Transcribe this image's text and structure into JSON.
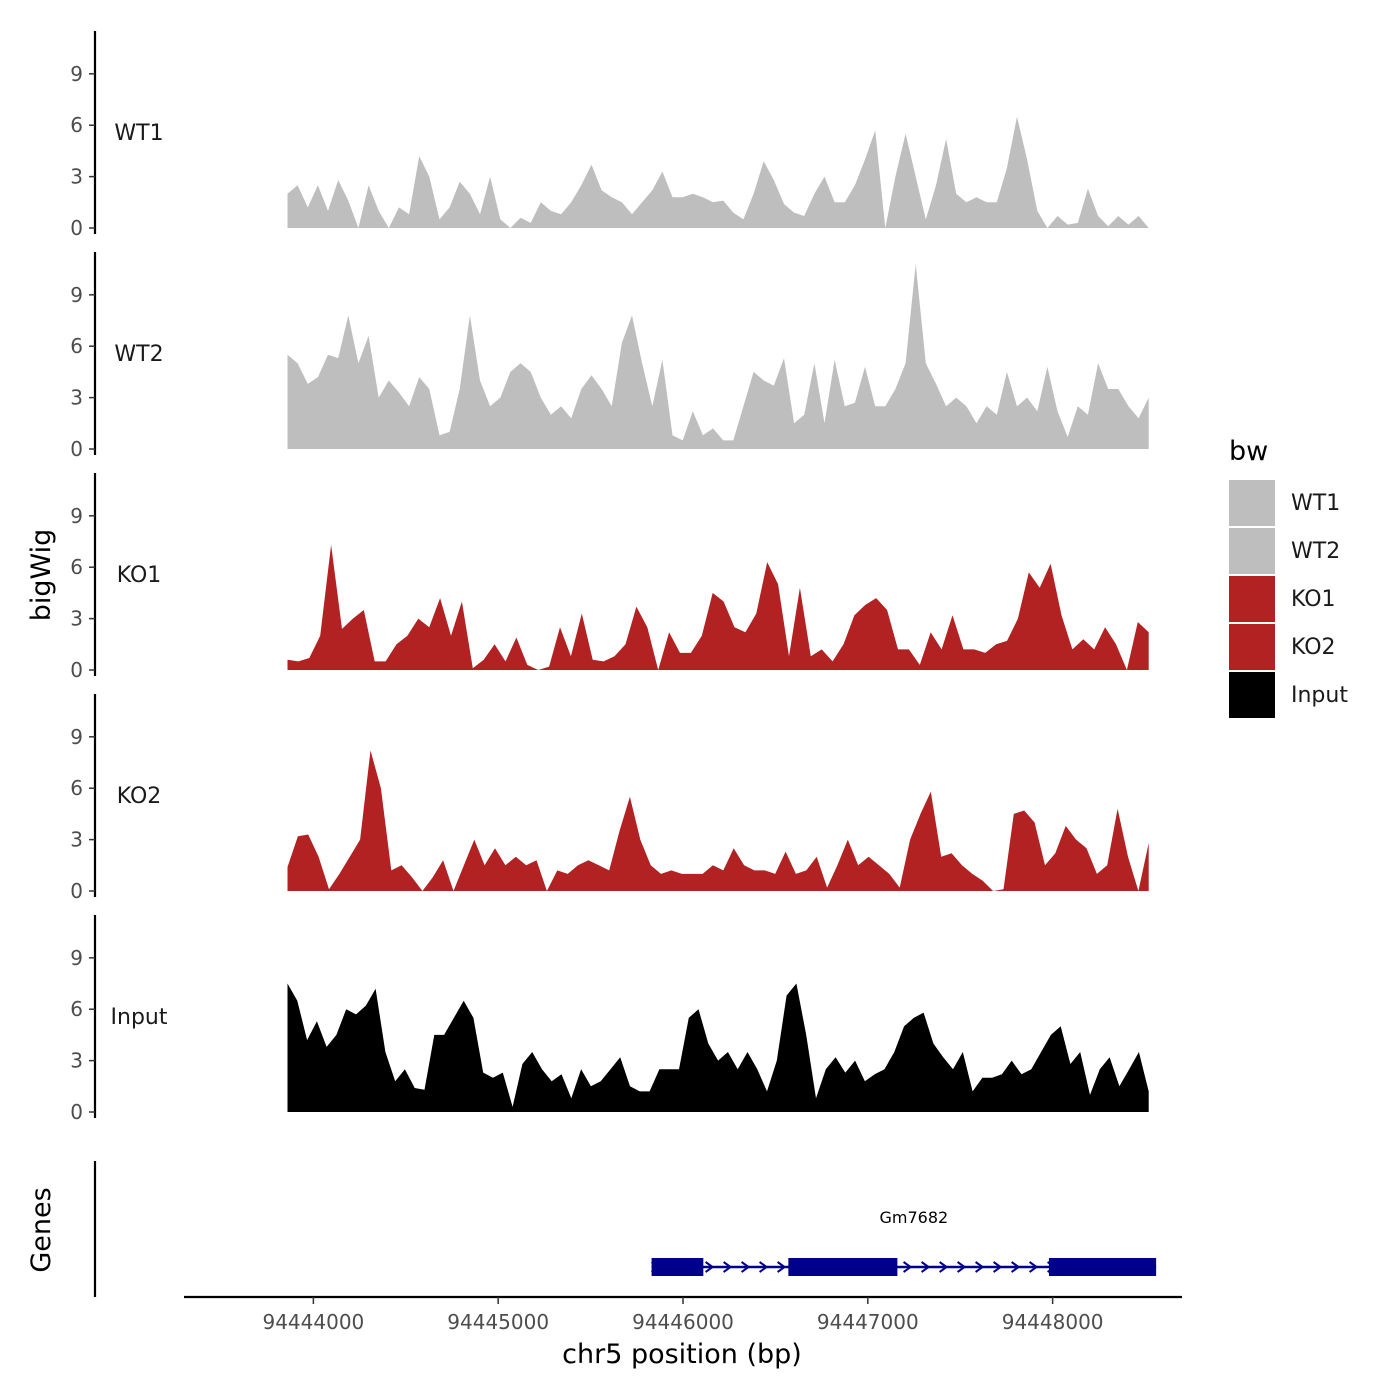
{
  "chart_data": {
    "type": "area",
    "title": "",
    "xlabel": "chr5 position (bp)",
    "ylabel": "bigWig",
    "gene_panel_label": "Genes",
    "legend_title": "bw",
    "legend_position": "right",
    "xlim": [
      94443300,
      94448700
    ],
    "x_ticks": [
      94444000,
      94445000,
      94446000,
      94447000,
      94448000
    ],
    "x_tick_labels": [
      "94444000",
      "94445000",
      "94446000",
      "94447000",
      "94448000"
    ],
    "ylim": [
      0,
      11.5
    ],
    "y_ticks": [
      0,
      3,
      6,
      9
    ],
    "y_tick_labels": [
      "0",
      "3",
      "6",
      "9"
    ],
    "grid": false,
    "track_x_start": 94443860,
    "track_x_end": 94448520,
    "series": [
      {
        "name": "WT1",
        "color": "#BEBEBE",
        "values": [
          2.0,
          2.5,
          1.2,
          2.5,
          1.0,
          2.8,
          1.6,
          0,
          2.5,
          1.0,
          0,
          1.2,
          0.8,
          4.2,
          3.0,
          0.5,
          1.2,
          2.7,
          2.0,
          0.8,
          3.0,
          0.5,
          0,
          0.6,
          0.3,
          1.5,
          1.0,
          0.8,
          1.5,
          2.5,
          3.7,
          2.2,
          1.8,
          1.5,
          0.8,
          1.5,
          2.2,
          3.3,
          1.8,
          1.8,
          2.0,
          1.8,
          1.5,
          1.6,
          0.9,
          0.5,
          2.0,
          3.9,
          2.8,
          1.4,
          0.9,
          0.7,
          2.0,
          3.0,
          1.5,
          1.5,
          2.5,
          4.0,
          5.7,
          0,
          3.0,
          5.5,
          3.0,
          0.5,
          2.5,
          5.2,
          2.0,
          1.5,
          1.8,
          1.5,
          1.5,
          3.5,
          6.5,
          4.0,
          1.0,
          0,
          0.7,
          0.2,
          0.3,
          2.3,
          0.7,
          0.1,
          0.7,
          0.2,
          0.7,
          0
        ]
      },
      {
        "name": "WT2",
        "color": "#BEBEBE",
        "values": [
          5.5,
          5.0,
          3.8,
          4.2,
          5.5,
          5.3,
          7.8,
          5.0,
          6.6,
          3.0,
          4.0,
          3.3,
          2.5,
          4.2,
          3.5,
          0.8,
          1.0,
          3.5,
          7.8,
          4.0,
          2.5,
          3.0,
          4.5,
          5.0,
          4.5,
          3.0,
          2.0,
          2.5,
          1.8,
          3.5,
          4.3,
          3.5,
          2.5,
          6.2,
          7.8,
          5.0,
          2.5,
          5.2,
          0.8,
          0.5,
          2.2,
          0.8,
          1.2,
          0.5,
          0.5,
          2.5,
          4.5,
          4.0,
          3.7,
          5.3,
          1.5,
          2.0,
          5.0,
          1.5,
          5.2,
          2.5,
          2.7,
          4.8,
          2.5,
          2.5,
          3.5,
          5.0,
          10.8,
          5.0,
          3.8,
          2.5,
          3.0,
          2.5,
          1.5,
          2.5,
          2.0,
          4.5,
          2.5,
          3.0,
          2.2,
          4.8,
          2.2,
          0.7,
          2.5,
          2.0,
          5.0,
          3.5,
          3.5,
          2.5,
          1.8,
          3.0
        ]
      },
      {
        "name": "KO1",
        "color": "#B22222",
        "values": [
          0.6,
          0.5,
          0.7,
          2.0,
          7.3,
          2.4,
          3.0,
          3.5,
          0.5,
          0.5,
          1.5,
          2.0,
          3.0,
          2.5,
          4.2,
          2.0,
          4.0,
          0.1,
          0.6,
          1.5,
          0.5,
          1.9,
          0.3,
          0,
          0.2,
          2.5,
          0.8,
          3.3,
          0.6,
          0.5,
          0.8,
          1.5,
          3.7,
          2.5,
          0,
          2.2,
          1.0,
          1.0,
          2.0,
          4.5,
          4.0,
          2.5,
          2.2,
          3.3,
          6.3,
          5.0,
          0.8,
          4.8,
          0.8,
          1.2,
          0.5,
          1.5,
          3.2,
          3.8,
          4.2,
          3.5,
          1.2,
          1.2,
          0.3,
          2.2,
          1.2,
          3.2,
          1.2,
          1.2,
          1.0,
          1.5,
          1.7,
          3.0,
          5.7,
          4.8,
          6.2,
          3.2,
          1.2,
          1.8,
          1.2,
          2.5,
          1.5,
          0,
          2.8,
          2.2
        ]
      },
      {
        "name": "KO2",
        "color": "#B22222",
        "values": [
          1.4,
          3.2,
          3.3,
          2.0,
          0.1,
          1.0,
          2.0,
          3.0,
          8.2,
          6.0,
          1.2,
          1.5,
          0.8,
          0,
          0.8,
          1.8,
          0,
          1.5,
          3.0,
          1.5,
          2.5,
          1.5,
          2.0,
          1.5,
          1.8,
          0,
          1.2,
          1.0,
          1.5,
          1.8,
          1.5,
          1.2,
          3.5,
          5.5,
          3.0,
          1.5,
          1.0,
          1.2,
          1.0,
          1.0,
          1.0,
          1.5,
          1.2,
          2.5,
          1.5,
          1.2,
          1.2,
          1.0,
          2.3,
          1.0,
          1.2,
          2.0,
          0.2,
          1.5,
          3.0,
          1.5,
          2.0,
          1.5,
          1.0,
          0.2,
          3.0,
          4.5,
          5.8,
          2.0,
          2.2,
          1.5,
          1.0,
          0.6,
          0,
          0.1,
          4.5,
          4.7,
          4.0,
          1.5,
          2.2,
          3.8,
          3.0,
          2.5,
          1.0,
          1.5,
          4.8,
          2.0,
          0,
          2.8
        ]
      },
      {
        "name": "Input",
        "color": "#000000",
        "values": [
          7.5,
          6.5,
          4.2,
          5.3,
          3.8,
          4.5,
          6.0,
          5.7,
          6.2,
          7.2,
          3.5,
          1.8,
          2.5,
          1.4,
          1.3,
          4.5,
          4.5,
          5.5,
          6.5,
          5.5,
          2.3,
          2.0,
          2.3,
          0.3,
          2.8,
          3.5,
          2.5,
          1.8,
          2.2,
          0.8,
          2.5,
          1.5,
          1.8,
          2.5,
          3.2,
          1.5,
          1.2,
          1.2,
          2.5,
          2.5,
          2.5,
          5.5,
          6.0,
          4.0,
          3.0,
          3.5,
          2.5,
          3.5,
          2.5,
          1.2,
          3.0,
          6.8,
          7.5,
          4.5,
          0.8,
          2.5,
          3.2,
          2.3,
          3.0,
          1.8,
          2.2,
          2.5,
          3.5,
          5.0,
          5.5,
          5.8,
          4.0,
          3.2,
          2.5,
          3.5,
          1.2,
          2.0,
          2.0,
          2.2,
          3.0,
          2.2,
          2.5,
          3.5,
          4.5,
          5.0,
          2.8,
          3.5,
          1.0,
          2.5,
          3.2,
          1.5,
          2.5,
          3.5,
          1.2
        ]
      }
    ],
    "genes": [
      {
        "name": "Gm7682",
        "strand": "+",
        "start": 94445830,
        "end": 94448560,
        "exons": [
          [
            94445830,
            94446110
          ],
          [
            94446570,
            94447160
          ],
          [
            94447980,
            94448560
          ]
        ]
      }
    ]
  }
}
